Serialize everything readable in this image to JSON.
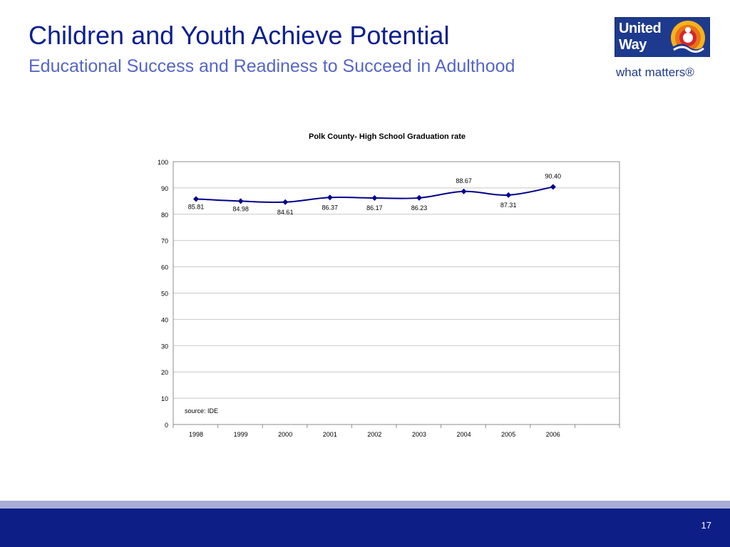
{
  "slide": {
    "title": "Children and Youth Achieve Potential",
    "subtitle": "Educational Success and Readiness to Succeed in Adulthood",
    "page_number": "17"
  },
  "logo": {
    "word1": "United",
    "word2": "Way",
    "tagline": "what matters®"
  },
  "colors": {
    "title": "#0b1f8f",
    "subtitle": "#5566c6",
    "series": "#00008b",
    "footer_dark": "#0d1f86",
    "footer_light": "#a9acd6",
    "logo_blue": "#1e3a8e"
  },
  "chart_data": {
    "type": "line",
    "title": "Polk County- High School Graduation rate",
    "categories": [
      "1998",
      "1999",
      "2000",
      "2001",
      "2002",
      "2003",
      "2004",
      "2005",
      "2006"
    ],
    "series": [
      {
        "values": [
          85.81,
          84.98,
          84.61,
          86.37,
          86.17,
          86.23,
          88.67,
          87.31,
          90.4
        ]
      }
    ],
    "data_labels": [
      "85.81",
      "84.98",
      "84.61",
      "86.37",
      "86.17",
      "86.23",
      "88.67",
      "87.31",
      "90.40"
    ],
    "ylim": [
      0,
      100
    ],
    "yticks": [
      0,
      10,
      20,
      30,
      40,
      50,
      60,
      70,
      80,
      90,
      100
    ],
    "grid": true,
    "legend": "none",
    "annotation": "source: IDE",
    "xlabel": "",
    "ylabel": ""
  }
}
